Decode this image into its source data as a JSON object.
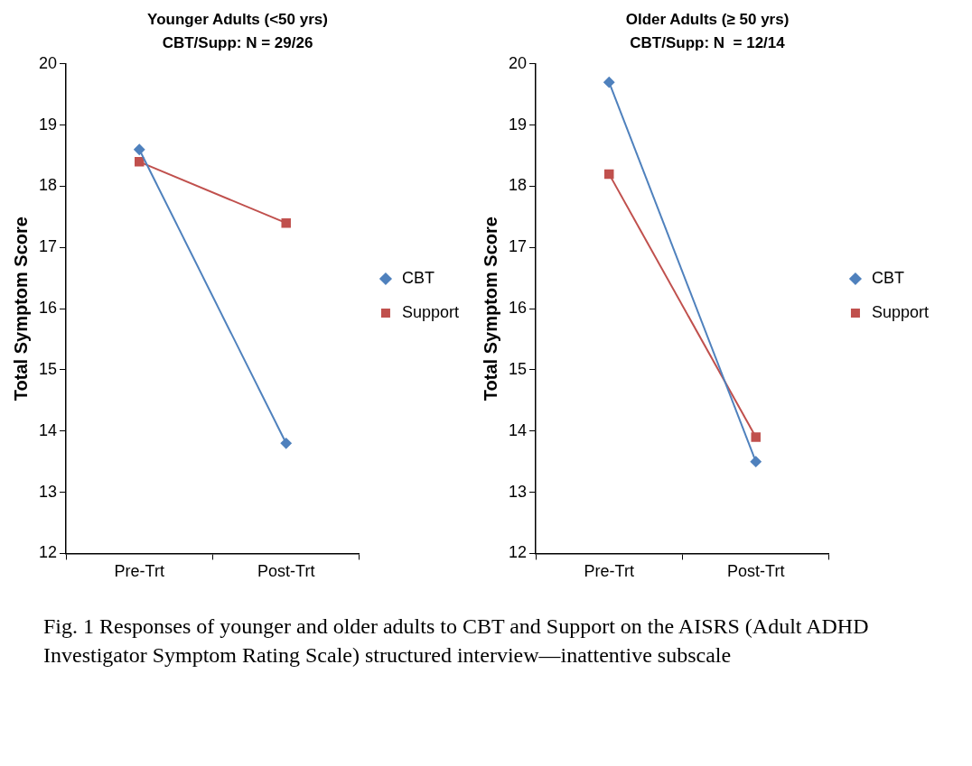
{
  "chart_data": [
    {
      "type": "line",
      "title": "Younger Adults (<50 yrs)",
      "subtitle": "CBT/Supp: N = 29/26",
      "ylabel": "Total Symptom Score",
      "categories": [
        "Pre-Trt",
        "Post-Trt"
      ],
      "series": [
        {
          "name": "CBT",
          "color": "#4f81bd",
          "marker": "diamond",
          "values": [
            18.6,
            13.8
          ]
        },
        {
          "name": "Support",
          "color": "#c0504d",
          "marker": "square",
          "values": [
            18.4,
            17.4
          ]
        }
      ],
      "ylim": [
        12,
        20
      ],
      "yticks": [
        12,
        13,
        14,
        15,
        16,
        17,
        18,
        19,
        20
      ],
      "legend": "right",
      "line_style": "solid",
      "annotations": [
        "Fig. 1 Responses of younger and older adults to CBT and Support on the AISRS (Adult ADHD Investigator Symptom Rating Scale) structured interview—inattentive subscale"
      ]
    },
    {
      "type": "line",
      "title": "Older Adults (≥ 50 yrs)",
      "subtitle": "CBT/Supp: N  = 12/14",
      "ylabel": "Total Symptom Score",
      "categories": [
        "Pre-Trt",
        "Post-Trt"
      ],
      "series": [
        {
          "name": "CBT",
          "color": "#4f81bd",
          "marker": "diamond",
          "values": [
            19.7,
            13.5
          ]
        },
        {
          "name": "Support",
          "color": "#c0504d",
          "marker": "square",
          "values": [
            18.2,
            13.9
          ]
        }
      ],
      "ylim": [
        12,
        20
      ],
      "yticks": [
        12,
        13,
        14,
        15,
        16,
        17,
        18,
        19,
        20
      ],
      "legend": "right",
      "line_style": "solid"
    }
  ]
}
